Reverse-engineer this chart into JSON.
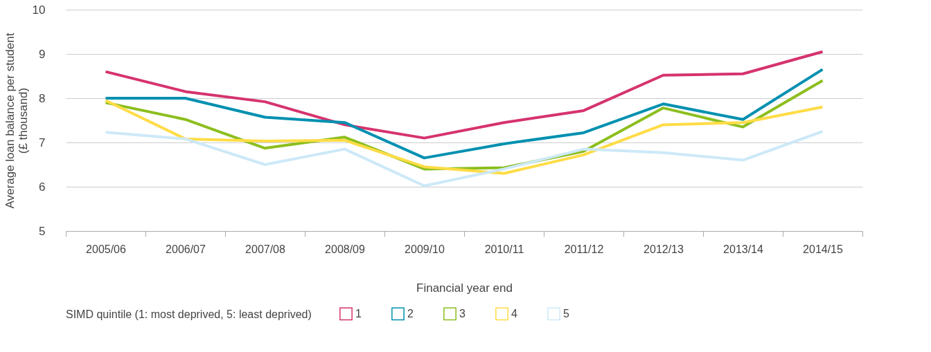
{
  "chart_data": {
    "type": "line",
    "xlabel": "Financial year end",
    "ylabel": "Average loan balance per student\n(£ thousand)",
    "legend_title": "SIMD quintile (1: most deprived, 5: least deprived)",
    "categories": [
      "2005/06",
      "2006/07",
      "2007/08",
      "2008/09",
      "2009/10",
      "2010/11",
      "2011/12",
      "2012/13",
      "2013/14",
      "2014/15"
    ],
    "series": [
      {
        "name": "1",
        "color": "#d6336e",
        "values": [
          8.6,
          8.15,
          7.92,
          7.4,
          7.1,
          7.45,
          7.72,
          8.52,
          8.55,
          9.05
        ]
      },
      {
        "name": "2",
        "color": "#0090b0",
        "values": [
          8.0,
          8.0,
          7.57,
          7.45,
          6.65,
          6.97,
          7.22,
          7.87,
          7.52,
          8.65
        ]
      },
      {
        "name": "3",
        "color": "#8cbe1e",
        "values": [
          7.9,
          7.52,
          6.87,
          7.12,
          6.4,
          6.43,
          6.8,
          7.78,
          7.35,
          8.4
        ]
      },
      {
        "name": "4",
        "color": "#ffdc46",
        "values": [
          7.95,
          7.08,
          7.03,
          7.05,
          6.45,
          6.3,
          6.72,
          7.4,
          7.45,
          7.8
        ]
      },
      {
        "name": "5",
        "color": "#cde9f8",
        "values": [
          7.23,
          7.08,
          6.5,
          6.85,
          6.02,
          6.4,
          6.85,
          6.77,
          6.6,
          7.25
        ]
      }
    ],
    "ylim": [
      5,
      10
    ],
    "yticks": [
      5,
      6,
      7,
      8,
      9,
      10
    ],
    "grid": "y",
    "legend": "bottom",
    "marker": "none",
    "line_style": "solid"
  }
}
